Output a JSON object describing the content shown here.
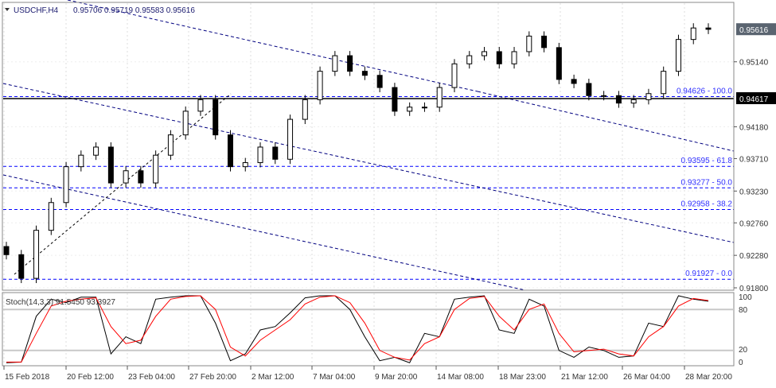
{
  "header": {
    "symbol": "USDCHF,H4",
    "ohlc": "0.95706 0.95719 0.95583 0.95616"
  },
  "chart_data": [
    {
      "type": "candlestick",
      "title": "USDCHF,H4",
      "ylim": [
        0.918,
        0.9605
      ],
      "y_ticks": [
        "0.95140",
        "0.94180",
        "0.93710",
        "0.93230",
        "0.92760",
        "0.92280",
        "0.91800"
      ],
      "current_price": "0.95616",
      "marked_price": "0.94617",
      "x_ticks": [
        "15 Feb 2018",
        "20 Feb 12:00",
        "23 Feb 04:00",
        "27 Feb 20:00",
        "2 Mar 12:00",
        "7 Mar 04:00",
        "9 Mar 20:00",
        "14 Mar 08:00",
        "18 Mar 23:00",
        "21 Mar 12:00",
        "26 Mar 04:00",
        "28 Mar 20:00"
      ],
      "fib_levels": [
        {
          "price": 0.94626,
          "label": "0.94626 - 100.0"
        },
        {
          "price": 0.93595,
          "label": "0.93595 - 61.8"
        },
        {
          "price": 0.93277,
          "label": "0.93277 - 50.0"
        },
        {
          "price": 0.92958,
          "label": "0.92958 - 38.2"
        },
        {
          "price": 0.91927,
          "label": "0.91927 - 0.0"
        }
      ],
      "closes": [
        0.9229,
        0.9194,
        0.9265,
        0.9306,
        0.9359,
        0.9376,
        0.9388,
        0.9335,
        0.9353,
        0.9335,
        0.9376,
        0.9406,
        0.9441,
        0.9458,
        0.9406,
        0.9359,
        0.9365,
        0.9388,
        0.937,
        0.9429,
        0.9458,
        0.95,
        0.9523,
        0.95,
        0.9494,
        0.9476,
        0.9441,
        0.9447,
        0.9447,
        0.9476,
        0.9511,
        0.9523,
        0.9529,
        0.9511,
        0.9529,
        0.9552,
        0.9535,
        0.9488,
        0.9482,
        0.9464,
        0.9464,
        0.9453,
        0.9458,
        0.9467,
        0.95,
        0.9547,
        0.9564,
        0.9562
      ],
      "colors": {
        "fib": "#0000ff",
        "trend": "#000080",
        "candle": "#000000"
      }
    },
    {
      "type": "line",
      "title": "Stoch(14,3,3) 91.5450 93.3927",
      "ylim": [
        0,
        100
      ],
      "levels": [
        80,
        20
      ],
      "y_ticks": [
        "100",
        "80",
        "20",
        "0"
      ],
      "series": [
        {
          "color": "#000000",
          "values": [
            2,
            3,
            70,
            95,
            90,
            98,
            98,
            15,
            40,
            30,
            95,
            98,
            100,
            100,
            60,
            5,
            15,
            50,
            55,
            75,
            97,
            100,
            100,
            80,
            40,
            5,
            10,
            2,
            45,
            40,
            95,
            98,
            100,
            50,
            45,
            95,
            85,
            20,
            10,
            25,
            20,
            10,
            12,
            60,
            55,
            100,
            95,
            92
          ]
        },
        {
          "color": "#ff0000",
          "values": [
            3,
            3,
            45,
            85,
            92,
            95,
            97,
            55,
            30,
            35,
            70,
            95,
            99,
            100,
            80,
            25,
            12,
            35,
            50,
            65,
            88,
            98,
            100,
            90,
            60,
            20,
            10,
            6,
            30,
            40,
            80,
            96,
            99,
            70,
            50,
            80,
            88,
            45,
            18,
            20,
            22,
            15,
            12,
            40,
            55,
            85,
            96,
            93
          ]
        }
      ]
    }
  ]
}
